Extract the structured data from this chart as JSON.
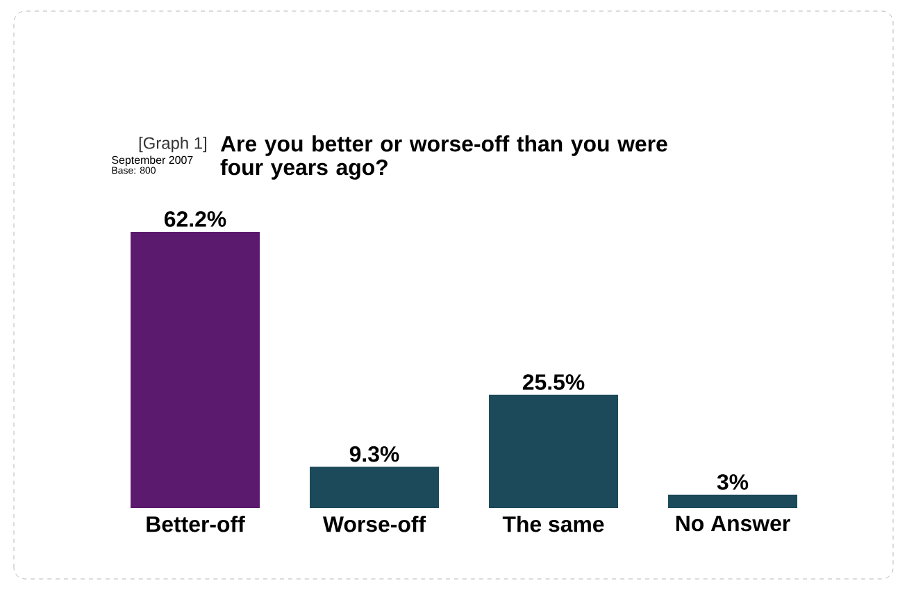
{
  "chart_data": {
    "type": "bar",
    "title": "Are you better or worse-off than you were four years ago?",
    "subtitle": "[Graph 1]",
    "annotations": [
      "September 2007",
      "Base: 800"
    ],
    "categories": [
      "Better-off",
      "Worse-off",
      "The same",
      "No Answer"
    ],
    "values": [
      62.2,
      9.3,
      25.5,
      3
    ],
    "colors": [
      "#5c1a6e",
      "#1c4a5a",
      "#1c4a5a",
      "#1c4a5a"
    ],
    "value_labels": [
      "62.2%",
      "9.3%",
      "25.5%",
      "3%"
    ]
  }
}
